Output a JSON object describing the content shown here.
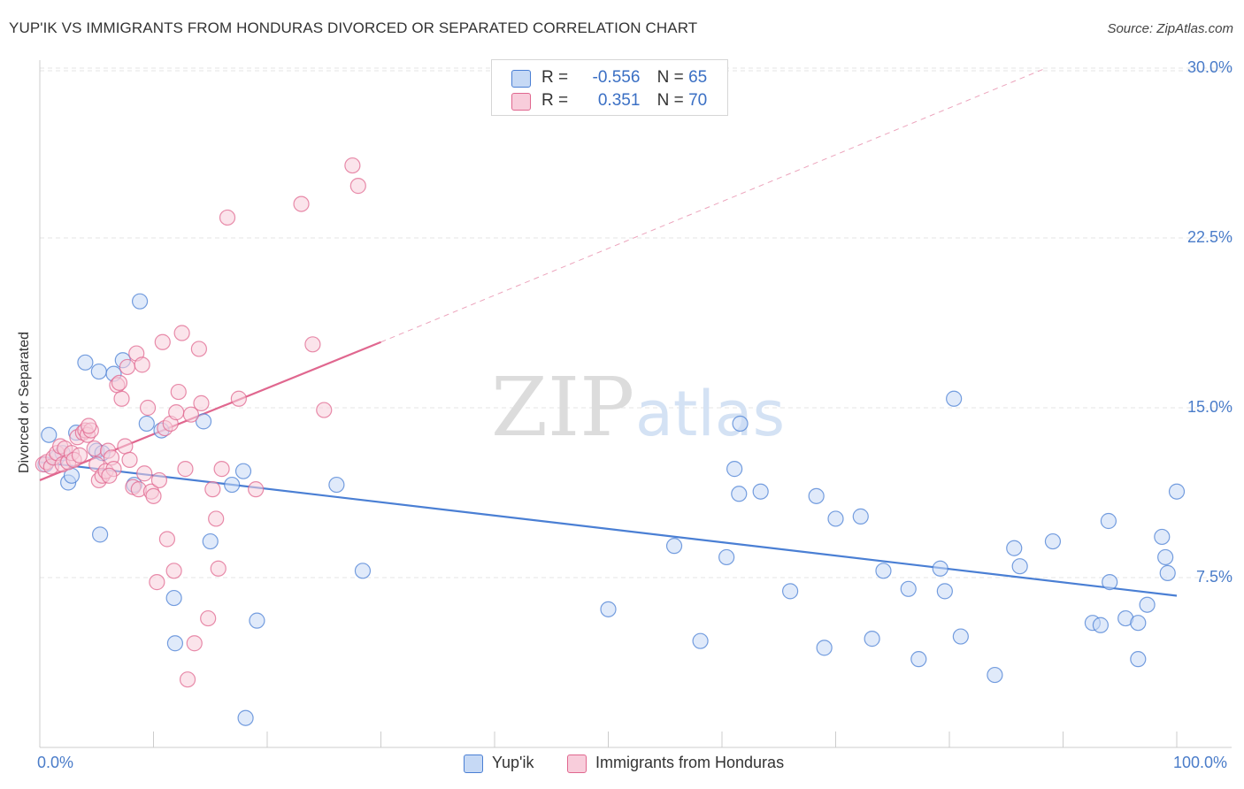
{
  "title": "YUP'IK VS IMMIGRANTS FROM HONDURAS DIVORCED OR SEPARATED CORRELATION CHART",
  "source": "Source: ZipAtlas.com",
  "watermark": {
    "zip": "ZIP",
    "atlas": "atlas"
  },
  "legend": {
    "rows": [
      {
        "r_label": "R =",
        "r_value": "-0.556",
        "n_label": "N =",
        "n_value": "65"
      },
      {
        "r_label": "R =",
        "r_value": "0.351",
        "n_label": "N =",
        "n_value": "70"
      }
    ]
  },
  "colors": {
    "yupik": "#4a7fd4",
    "yupik_fill": "#c6d9f5",
    "honduras": "#e0678f",
    "honduras_fill": "#f8cddb",
    "tick_text": "#4a7cc9"
  },
  "chart_data": {
    "type": "scatter",
    "xlabel": "",
    "ylabel": "Divorced or Separated",
    "xlim": [
      0,
      100
    ],
    "ylim": [
      0,
      31
    ],
    "x_ticks": [
      "0.0%",
      "100.0%"
    ],
    "y_ticks": [
      {
        "value": 7.5,
        "label": "7.5%"
      },
      {
        "value": 15.0,
        "label": "15.0%"
      },
      {
        "value": 22.5,
        "label": "22.5%"
      },
      {
        "value": 30.0,
        "label": "30.0%"
      }
    ],
    "grid": true,
    "legend_position": "bottom",
    "series": [
      {
        "name": "Yup'ik",
        "trend": {
          "x_start": 0,
          "y_start": 12.6,
          "x_end": 100,
          "y_end": 6.7
        },
        "points": [
          [
            0.5,
            12.5
          ],
          [
            0.8,
            13.8
          ],
          [
            1.5,
            12.8
          ],
          [
            2.0,
            13.0
          ],
          [
            2.5,
            11.7
          ],
          [
            2.8,
            12.0
          ],
          [
            3.2,
            13.9
          ],
          [
            4.0,
            17.0
          ],
          [
            5.0,
            13.1
          ],
          [
            5.2,
            16.6
          ],
          [
            5.3,
            9.4
          ],
          [
            5.5,
            13.0
          ],
          [
            6.5,
            16.5
          ],
          [
            7.3,
            17.1
          ],
          [
            8.3,
            11.6
          ],
          [
            8.8,
            19.7
          ],
          [
            9.4,
            14.3
          ],
          [
            10.7,
            14.0
          ],
          [
            11.8,
            6.6
          ],
          [
            11.9,
            4.6
          ],
          [
            14.4,
            14.4
          ],
          [
            15.0,
            9.1
          ],
          [
            16.9,
            11.6
          ],
          [
            17.9,
            12.2
          ],
          [
            18.1,
            1.3
          ],
          [
            19.1,
            5.6
          ],
          [
            26.1,
            11.6
          ],
          [
            28.4,
            7.8
          ],
          [
            50.0,
            6.1
          ],
          [
            55.8,
            8.9
          ],
          [
            58.1,
            4.7
          ],
          [
            60.4,
            8.4
          ],
          [
            61.1,
            12.3
          ],
          [
            61.5,
            11.2
          ],
          [
            61.6,
            14.3
          ],
          [
            63.4,
            11.3
          ],
          [
            66.0,
            6.9
          ],
          [
            68.3,
            11.1
          ],
          [
            69.0,
            4.4
          ],
          [
            70.0,
            10.1
          ],
          [
            72.2,
            10.2
          ],
          [
            73.2,
            4.8
          ],
          [
            74.2,
            7.8
          ],
          [
            76.4,
            7.0
          ],
          [
            77.3,
            3.9
          ],
          [
            79.2,
            7.9
          ],
          [
            79.6,
            6.9
          ],
          [
            80.4,
            15.4
          ],
          [
            81.0,
            4.9
          ],
          [
            84.0,
            3.2
          ],
          [
            85.7,
            8.8
          ],
          [
            86.2,
            8.0
          ],
          [
            89.1,
            9.1
          ],
          [
            92.6,
            5.5
          ],
          [
            93.3,
            5.4
          ],
          [
            94.0,
            10.0
          ],
          [
            94.1,
            7.3
          ],
          [
            95.5,
            5.7
          ],
          [
            96.6,
            5.5
          ],
          [
            96.6,
            3.9
          ],
          [
            97.4,
            6.3
          ],
          [
            98.7,
            9.3
          ],
          [
            99.0,
            8.4
          ],
          [
            99.2,
            7.7
          ],
          [
            100.0,
            11.3
          ]
        ]
      },
      {
        "name": "Immigrants from Honduras",
        "trend": {
          "x_start": 0,
          "y_start": 11.8,
          "x_end": 30,
          "y_end": 17.9
        },
        "trend_extension": {
          "x_start": 30,
          "y_start": 17.9,
          "x_end": 88.5,
          "y_end": 30.0
        },
        "points": [
          [
            0.3,
            12.5
          ],
          [
            0.6,
            12.6
          ],
          [
            1.0,
            12.4
          ],
          [
            1.2,
            12.8
          ],
          [
            1.5,
            13.0
          ],
          [
            1.8,
            13.3
          ],
          [
            2.0,
            12.5
          ],
          [
            2.2,
            13.2
          ],
          [
            2.5,
            12.6
          ],
          [
            2.8,
            13.0
          ],
          [
            3.0,
            12.7
          ],
          [
            3.3,
            13.7
          ],
          [
            3.5,
            12.9
          ],
          [
            3.8,
            13.9
          ],
          [
            4.0,
            14.0
          ],
          [
            4.2,
            13.8
          ],
          [
            4.5,
            14.0
          ],
          [
            4.8,
            13.2
          ],
          [
            5.0,
            12.5
          ],
          [
            5.2,
            11.8
          ],
          [
            5.5,
            12.0
          ],
          [
            5.8,
            12.2
          ],
          [
            6.0,
            13.1
          ],
          [
            6.3,
            12.8
          ],
          [
            6.5,
            12.3
          ],
          [
            6.8,
            16.0
          ],
          [
            7.0,
            16.1
          ],
          [
            7.2,
            15.4
          ],
          [
            7.5,
            13.3
          ],
          [
            7.7,
            16.8
          ],
          [
            7.9,
            12.7
          ],
          [
            8.2,
            11.5
          ],
          [
            8.5,
            17.4
          ],
          [
            8.7,
            11.4
          ],
          [
            9.0,
            16.9
          ],
          [
            9.2,
            12.1
          ],
          [
            9.5,
            15.0
          ],
          [
            9.8,
            11.3
          ],
          [
            10.0,
            11.1
          ],
          [
            10.3,
            7.3
          ],
          [
            10.5,
            11.8
          ],
          [
            10.8,
            17.9
          ],
          [
            11.0,
            14.1
          ],
          [
            11.2,
            9.2
          ],
          [
            11.5,
            14.3
          ],
          [
            11.8,
            7.8
          ],
          [
            12.0,
            14.8
          ],
          [
            12.2,
            15.7
          ],
          [
            12.5,
            18.3
          ],
          [
            12.8,
            12.3
          ],
          [
            13.0,
            3.0
          ],
          [
            13.3,
            14.7
          ],
          [
            13.6,
            4.6
          ],
          [
            14.0,
            17.6
          ],
          [
            14.2,
            15.2
          ],
          [
            14.8,
            5.7
          ],
          [
            15.2,
            11.4
          ],
          [
            15.5,
            10.1
          ],
          [
            15.7,
            7.9
          ],
          [
            16.0,
            12.3
          ],
          [
            16.5,
            23.4
          ],
          [
            17.5,
            15.4
          ],
          [
            19.0,
            11.4
          ],
          [
            23.0,
            24.0
          ],
          [
            24.0,
            17.8
          ],
          [
            25.0,
            14.9
          ],
          [
            27.5,
            25.7
          ],
          [
            28.0,
            24.8
          ],
          [
            4.3,
            14.2
          ],
          [
            6.1,
            12.0
          ]
        ]
      }
    ]
  }
}
